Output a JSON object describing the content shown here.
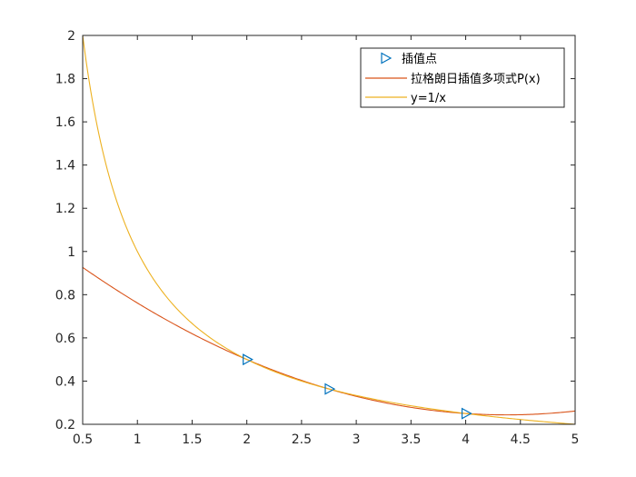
{
  "chart_data": {
    "type": "line",
    "xlim": [
      0.5,
      5
    ],
    "ylim": [
      0.2,
      2
    ],
    "x_ticks": [
      0.5,
      1,
      1.5,
      2,
      2.5,
      3,
      3.5,
      4,
      4.5,
      5
    ],
    "y_ticks": [
      0.2,
      0.4,
      0.6,
      0.8,
      1,
      1.2,
      1.4,
      1.6,
      1.8,
      2
    ],
    "x_tick_labels": [
      "0.5",
      "1",
      "1.5",
      "2",
      "2.5",
      "3",
      "3.5",
      "4",
      "4.5",
      "5"
    ],
    "y_tick_labels": [
      "0.2",
      "0.4",
      "0.6",
      "0.8",
      "1",
      "1.2",
      "1.4",
      "1.6",
      "1.8",
      "2"
    ],
    "grid": false,
    "legend_position": "top-right",
    "series": [
      {
        "name": "插值点",
        "kind": "markers",
        "marker": "triangle-right",
        "color": "#0072BD",
        "x": [
          2,
          2.75,
          4
        ],
        "y": [
          0.5,
          0.3636,
          0.25
        ]
      },
      {
        "name": "拉格朗日插值多项式P(x)",
        "kind": "line",
        "color": "#D95319",
        "function": "lagrange",
        "nodes_x": [
          2,
          2.75,
          4
        ],
        "nodes_y": [
          0.5,
          0.3636,
          0.25
        ],
        "x_range": [
          0.5,
          5
        ]
      },
      {
        "name": "y=1/x",
        "kind": "line",
        "color": "#EDB120",
        "function": "reciprocal",
        "x_range": [
          0.5,
          5
        ]
      }
    ]
  }
}
